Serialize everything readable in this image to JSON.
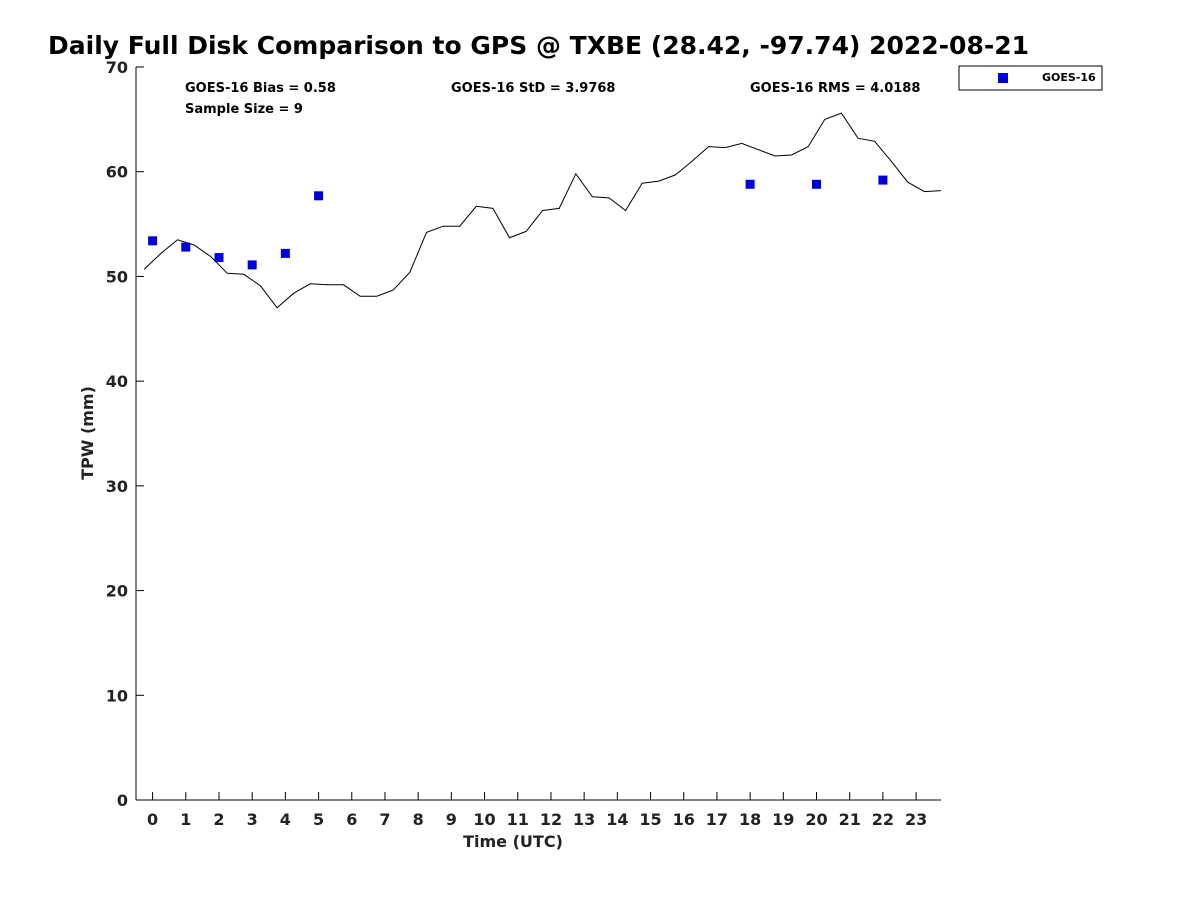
{
  "chart_data": {
    "type": "scatter",
    "title": "Daily Full Disk Comparison to GPS @ TXBE (28.42, -97.74) 2022-08-21",
    "xlabel": "Time (UTC)",
    "ylabel": "TPW (mm)",
    "xlim": [
      -0.5,
      23.75
    ],
    "ylim": [
      0,
      70
    ],
    "x_ticks": [
      0,
      1,
      2,
      3,
      4,
      5,
      6,
      7,
      8,
      9,
      10,
      11,
      12,
      13,
      14,
      15,
      16,
      17,
      18,
      19,
      20,
      21,
      22,
      23
    ],
    "y_ticks": [
      0,
      10,
      20,
      30,
      40,
      50,
      60,
      70
    ],
    "grid": false,
    "legend_position": "outside-top-right",
    "stats": {
      "bias": "GOES-16 Bias = 0.58",
      "sample": "Sample Size = 9",
      "std": "GOES-16 StD = 3.9768",
      "rms": "GOES-16 RMS = 4.0188"
    },
    "series": [
      {
        "name": "GOES-16",
        "kind": "scatter",
        "color": "#0000dd",
        "marker": "square",
        "points": [
          [
            0,
            53.4
          ],
          [
            1,
            52.8
          ],
          [
            2,
            51.8
          ],
          [
            3,
            51.1
          ],
          [
            4,
            52.2
          ],
          [
            5,
            57.7
          ],
          [
            18,
            58.8
          ],
          [
            20,
            58.8
          ],
          [
            22,
            59.2
          ]
        ]
      },
      {
        "kind": "line",
        "color": "#000000",
        "points": [
          [
            -0.25,
            50.7
          ],
          [
            0.25,
            52.2
          ],
          [
            0.75,
            53.5
          ],
          [
            1.25,
            53.0
          ],
          [
            1.75,
            51.9
          ],
          [
            2.25,
            50.3
          ],
          [
            2.75,
            50.2
          ],
          [
            3.25,
            49.1
          ],
          [
            3.75,
            47.0
          ],
          [
            4.25,
            48.4
          ],
          [
            4.75,
            49.3
          ],
          [
            5.25,
            49.2
          ],
          [
            5.75,
            49.2
          ],
          [
            6.25,
            48.1
          ],
          [
            6.75,
            48.1
          ],
          [
            7.25,
            48.7
          ],
          [
            7.75,
            50.4
          ],
          [
            8.25,
            54.2
          ],
          [
            8.75,
            54.8
          ],
          [
            9.25,
            54.8
          ],
          [
            9.75,
            56.7
          ],
          [
            10.25,
            56.5
          ],
          [
            10.75,
            53.7
          ],
          [
            11.25,
            54.3
          ],
          [
            11.75,
            56.3
          ],
          [
            12.25,
            56.5
          ],
          [
            12.75,
            59.8
          ],
          [
            13.25,
            57.6
          ],
          [
            13.75,
            57.5
          ],
          [
            14.25,
            56.3
          ],
          [
            14.75,
            58.9
          ],
          [
            15.25,
            59.1
          ],
          [
            15.75,
            59.7
          ],
          [
            16.25,
            61.0
          ],
          [
            16.75,
            62.4
          ],
          [
            17.25,
            62.3
          ],
          [
            17.75,
            62.7
          ],
          [
            18.25,
            62.1
          ],
          [
            18.75,
            61.5
          ],
          [
            19.25,
            61.6
          ],
          [
            19.75,
            62.4
          ],
          [
            20.25,
            65.0
          ],
          [
            20.75,
            65.6
          ],
          [
            21.25,
            63.2
          ],
          [
            21.75,
            62.9
          ],
          [
            22.25,
            61.0
          ],
          [
            22.75,
            59.0
          ],
          [
            23.25,
            58.1
          ],
          [
            23.75,
            58.2
          ]
        ]
      }
    ]
  }
}
